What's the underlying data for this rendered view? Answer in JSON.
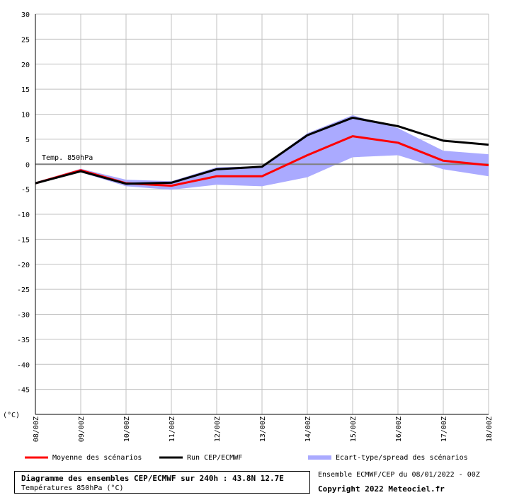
{
  "chart_data": {
    "type": "line",
    "ylabel": "(°C)",
    "ylim": [
      -50,
      30
    ],
    "yticks": [
      30,
      25,
      20,
      15,
      10,
      5,
      0,
      -5,
      -10,
      -15,
      -20,
      -25,
      -30,
      -35,
      -40,
      -45
    ],
    "categories": [
      "08/00Z",
      "09/00Z",
      "10/00Z",
      "11/00Z",
      "12/00Z",
      "13/00Z",
      "14/00Z",
      "15/00Z",
      "16/00Z",
      "17/00Z",
      "18/00Z"
    ],
    "grid": true,
    "inline_label": "Temp. 850hPa",
    "zero_line": 0,
    "series": [
      {
        "name": "Moyenne des scénarios",
        "color": "#ff0000",
        "values": [
          -3.8,
          -1.2,
          -3.8,
          -4.3,
          -2.4,
          -2.4,
          1.8,
          5.6,
          4.3,
          0.7,
          -0.2
        ]
      },
      {
        "name": "Run CEP/ECMWF",
        "color": "#000000",
        "values": [
          -3.8,
          -1.4,
          -3.9,
          -3.7,
          -1.0,
          -0.5,
          5.8,
          9.3,
          7.6,
          4.7,
          3.9
        ]
      }
    ],
    "band": {
      "name": "Ecart-type/spread des scénarios",
      "color": "#aaaaff",
      "upper": [
        -3.6,
        -0.9,
        -3.1,
        -3.4,
        -0.6,
        -0.4,
        6.2,
        9.8,
        7.2,
        2.7,
        2.0
      ],
      "lower": [
        -4.0,
        -1.6,
        -4.4,
        -5.1,
        -4.1,
        -4.4,
        -2.6,
        1.4,
        1.8,
        -1.0,
        -2.4
      ]
    }
  },
  "legend": {
    "mean": "Moyenne des scénarios",
    "run": "Run CEP/ECMWF",
    "spread": "Ecart-type/spread des scénarios"
  },
  "footer": {
    "title": "Diagramme des ensembles CEP/ECMWF sur 240h : 43.8N 12.7E",
    "subtitle": "Températures 850hPa (°C)",
    "run_info": "Ensemble ECMWF/CEP du 08/01/2022 - 00Z",
    "copyright": "Copyright 2022 Meteociel.fr"
  },
  "colors": {
    "grid": "#c0c0c0",
    "zero_line": "#808080",
    "axis": "#000000"
  }
}
